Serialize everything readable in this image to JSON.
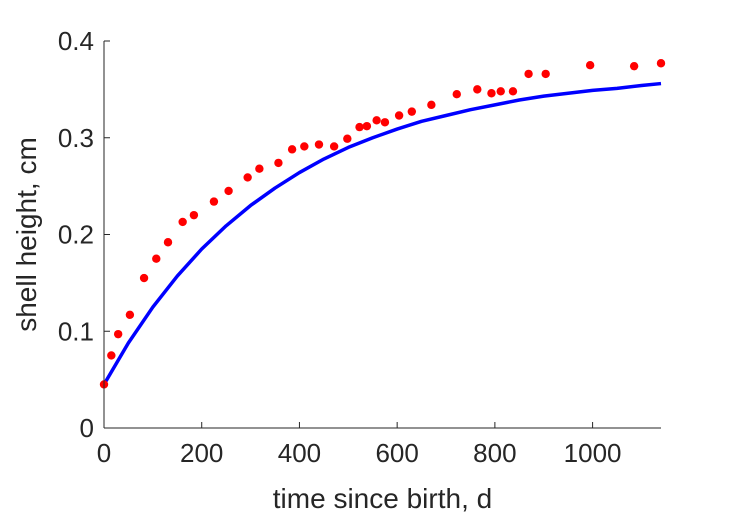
{
  "chart_data": {
    "type": "scatter",
    "xlabel": "time since birth, d",
    "ylabel": "shell height, cm",
    "xlim": [
      0,
      1140
    ],
    "ylim": [
      0,
      0.4
    ],
    "xticks": [
      0,
      200,
      400,
      600,
      800,
      1000
    ],
    "yticks": [
      0,
      0.1,
      0.2,
      0.3,
      0.4
    ],
    "xtick_labels": [
      "0",
      "200",
      "400",
      "600",
      "800",
      "1000"
    ],
    "ytick_labels": [
      "0",
      "0.1",
      "0.2",
      "0.3",
      "0.4"
    ],
    "grid": false,
    "series": [
      {
        "kind": "points",
        "color": "#ff0000",
        "x": [
          0,
          15,
          29,
          53,
          82,
          107,
          131,
          161,
          184,
          225,
          255,
          294,
          318,
          357,
          385,
          410,
          440,
          471,
          498,
          523,
          538,
          558,
          575,
          604,
          630,
          670,
          722,
          764,
          793,
          812,
          837,
          869,
          904,
          995,
          1085,
          1140
        ],
        "y": [
          0.045,
          0.075,
          0.097,
          0.117,
          0.155,
          0.175,
          0.192,
          0.213,
          0.22,
          0.234,
          0.245,
          0.259,
          0.268,
          0.274,
          0.288,
          0.291,
          0.293,
          0.291,
          0.299,
          0.311,
          0.312,
          0.318,
          0.316,
          0.323,
          0.327,
          0.334,
          0.345,
          0.35,
          0.346,
          0.348,
          0.348,
          0.366,
          0.366,
          0.375,
          0.374,
          0.377
        ]
      },
      {
        "kind": "fitted-curve",
        "color": "#0000ff",
        "x": [
          0,
          50,
          100,
          150,
          200,
          250,
          300,
          350,
          400,
          450,
          500,
          550,
          600,
          650,
          700,
          750,
          800,
          850,
          900,
          950,
          1000,
          1050,
          1100,
          1140
        ],
        "y": [
          0.045,
          0.088,
          0.125,
          0.157,
          0.185,
          0.209,
          0.23,
          0.248,
          0.264,
          0.278,
          0.29,
          0.3,
          0.309,
          0.317,
          0.323,
          0.329,
          0.334,
          0.339,
          0.343,
          0.346,
          0.349,
          0.351,
          0.354,
          0.356
        ]
      }
    ]
  }
}
